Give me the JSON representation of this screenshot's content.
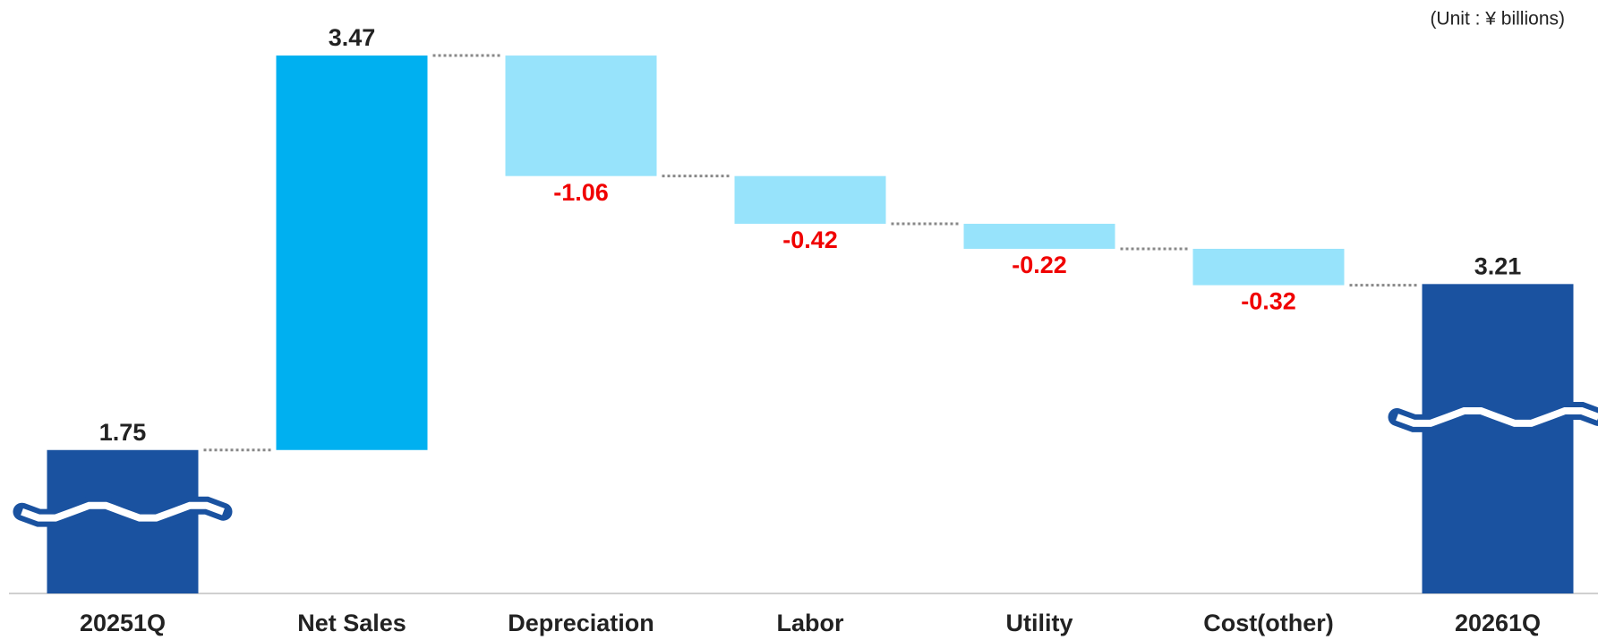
{
  "chart_data": {
    "type": "waterfall",
    "annotation": "(Unit : ¥ billions)",
    "categories": [
      "20251Q",
      "Net Sales",
      "Depreciation",
      "Labor",
      "Utility",
      "Cost(other)",
      "20261Q"
    ],
    "values": [
      1.75,
      3.47,
      -1.06,
      -0.42,
      -0.22,
      -0.32,
      3.21
    ],
    "total_color": "#1a52a0",
    "increase_color": "#00b0f0",
    "decrease_color": "#97e3fb"
  }
}
